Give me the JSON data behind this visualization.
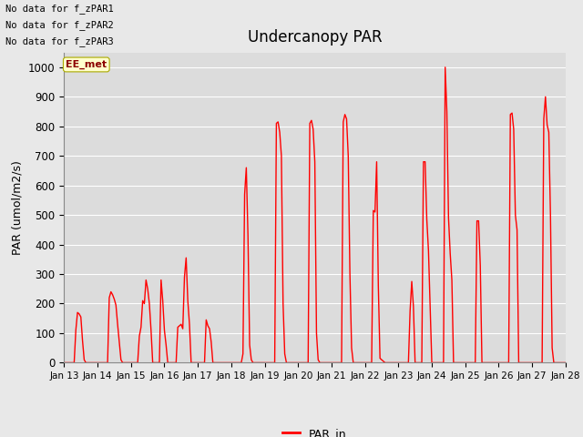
{
  "title": "Undercanopy PAR",
  "ylabel": "PAR (umol/m2/s)",
  "ylim": [
    0,
    1050
  ],
  "yticks": [
    0,
    100,
    200,
    300,
    400,
    500,
    600,
    700,
    800,
    900,
    1000
  ],
  "no_data_texts": [
    "No data for f_zPAR1",
    "No data for f_zPAR2",
    "No data for f_zPAR3"
  ],
  "ee_met_label": "EE_met",
  "legend_label": "PAR_in",
  "line_color": "#FF0000",
  "bg_color": "#E8E8E8",
  "plot_bg_color": "#DCDCDC",
  "xtick_labels": [
    "Jan 13",
    "Jan 14",
    "Jan 15",
    "Jan 16",
    "Jan 17",
    "Jan 18",
    "Jan 19",
    "Jan 20",
    "Jan 21",
    "Jan 22",
    "Jan 23",
    "Jan 24",
    "Jan 25",
    "Jan 26",
    "Jan 27",
    "Jan 28"
  ],
  "par_data": [
    [
      13.0,
      0
    ],
    [
      13.3,
      0
    ],
    [
      13.35,
      110
    ],
    [
      13.4,
      170
    ],
    [
      13.45,
      165
    ],
    [
      13.5,
      155
    ],
    [
      13.55,
      75
    ],
    [
      13.6,
      10
    ],
    [
      13.65,
      0
    ],
    [
      13.7,
      0
    ],
    [
      14.0,
      0
    ],
    [
      14.3,
      0
    ],
    [
      14.35,
      220
    ],
    [
      14.4,
      240
    ],
    [
      14.45,
      230
    ],
    [
      14.5,
      215
    ],
    [
      14.55,
      195
    ],
    [
      14.6,
      130
    ],
    [
      14.65,
      70
    ],
    [
      14.7,
      10
    ],
    [
      14.75,
      0
    ],
    [
      15.0,
      0
    ],
    [
      15.2,
      0
    ],
    [
      15.25,
      90
    ],
    [
      15.3,
      120
    ],
    [
      15.35,
      210
    ],
    [
      15.4,
      200
    ],
    [
      15.45,
      280
    ],
    [
      15.5,
      250
    ],
    [
      15.55,
      200
    ],
    [
      15.6,
      110
    ],
    [
      15.65,
      0
    ],
    [
      15.85,
      0
    ],
    [
      15.9,
      280
    ],
    [
      15.95,
      210
    ],
    [
      16.0,
      110
    ],
    [
      16.05,
      60
    ],
    [
      16.1,
      0
    ],
    [
      16.35,
      0
    ],
    [
      16.4,
      120
    ],
    [
      16.45,
      125
    ],
    [
      16.5,
      130
    ],
    [
      16.55,
      115
    ],
    [
      16.6,
      290
    ],
    [
      16.65,
      355
    ],
    [
      16.7,
      210
    ],
    [
      16.75,
      130
    ],
    [
      16.8,
      0
    ],
    [
      17.0,
      0
    ],
    [
      17.2,
      0
    ],
    [
      17.25,
      145
    ],
    [
      17.3,
      125
    ],
    [
      17.35,
      115
    ],
    [
      17.4,
      70
    ],
    [
      17.45,
      0
    ],
    [
      17.7,
      0
    ],
    [
      17.8,
      0
    ],
    [
      18.0,
      0
    ],
    [
      18.3,
      0
    ],
    [
      18.35,
      30
    ],
    [
      18.4,
      570
    ],
    [
      18.45,
      660
    ],
    [
      18.5,
      430
    ],
    [
      18.55,
      60
    ],
    [
      18.6,
      10
    ],
    [
      18.65,
      0
    ],
    [
      19.0,
      0
    ],
    [
      19.3,
      0
    ],
    [
      19.35,
      810
    ],
    [
      19.4,
      815
    ],
    [
      19.45,
      780
    ],
    [
      19.5,
      700
    ],
    [
      19.55,
      200
    ],
    [
      19.6,
      30
    ],
    [
      19.65,
      0
    ],
    [
      20.0,
      0
    ],
    [
      20.3,
      0
    ],
    [
      20.35,
      810
    ],
    [
      20.4,
      820
    ],
    [
      20.45,
      790
    ],
    [
      20.5,
      680
    ],
    [
      20.55,
      100
    ],
    [
      20.6,
      10
    ],
    [
      20.65,
      0
    ],
    [
      21.0,
      0
    ],
    [
      21.3,
      0
    ],
    [
      21.35,
      815
    ],
    [
      21.4,
      840
    ],
    [
      21.45,
      825
    ],
    [
      21.5,
      700
    ],
    [
      21.55,
      300
    ],
    [
      21.6,
      50
    ],
    [
      21.65,
      0
    ],
    [
      22.0,
      0
    ],
    [
      22.2,
      0
    ],
    [
      22.25,
      515
    ],
    [
      22.3,
      510
    ],
    [
      22.35,
      680
    ],
    [
      22.4,
      260
    ],
    [
      22.45,
      15
    ],
    [
      22.6,
      0
    ],
    [
      22.65,
      0
    ],
    [
      23.0,
      0
    ],
    [
      23.3,
      0
    ],
    [
      23.35,
      175
    ],
    [
      23.4,
      275
    ],
    [
      23.45,
      190
    ],
    [
      23.5,
      0
    ],
    [
      23.7,
      0
    ],
    [
      23.75,
      680
    ],
    [
      23.8,
      680
    ],
    [
      23.85,
      485
    ],
    [
      23.9,
      380
    ],
    [
      23.95,
      190
    ],
    [
      24.0,
      0
    ],
    [
      24.05,
      0
    ],
    [
      24.35,
      0
    ],
    [
      24.4,
      1000
    ],
    [
      24.45,
      850
    ],
    [
      24.5,
      490
    ],
    [
      24.55,
      370
    ],
    [
      24.6,
      280
    ],
    [
      24.65,
      0
    ],
    [
      25.0,
      0
    ],
    [
      25.3,
      0
    ],
    [
      25.35,
      480
    ],
    [
      25.4,
      480
    ],
    [
      25.45,
      330
    ],
    [
      25.5,
      0
    ],
    [
      26.0,
      0
    ],
    [
      26.3,
      0
    ],
    [
      26.35,
      840
    ],
    [
      26.4,
      845
    ],
    [
      26.45,
      790
    ],
    [
      26.5,
      500
    ],
    [
      26.55,
      450
    ],
    [
      26.6,
      0
    ],
    [
      27.0,
      0
    ],
    [
      27.3,
      0
    ],
    [
      27.35,
      825
    ],
    [
      27.4,
      900
    ],
    [
      27.45,
      805
    ],
    [
      27.5,
      780
    ],
    [
      27.55,
      500
    ],
    [
      27.6,
      50
    ],
    [
      27.65,
      0
    ],
    [
      27.9,
      0
    ],
    [
      28.0,
      0
    ]
  ]
}
